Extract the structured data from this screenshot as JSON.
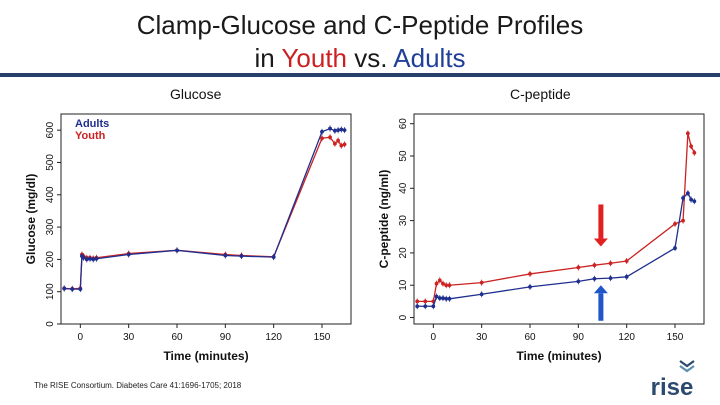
{
  "slide": {
    "title_line1": "Clamp-Glucose and C-Peptide Profiles",
    "title_line2_prefix": "in",
    "title_line2_youth": "Youth",
    "title_line2_mid": "vs.",
    "title_line2_adults": "Adults",
    "citation": "The RISE Consortium. Diabetes Care 41:1696-1705; 2018",
    "logo_text": "rise"
  },
  "colors": {
    "youth": "#cc2222",
    "adults": "#1f2f8f",
    "title_youth": "#cc1f1f",
    "title_adults": "#1f3f99",
    "up_arrow": "#1f56c9",
    "down_arrow": "#e12020"
  },
  "chart_data": [
    {
      "type": "line",
      "panel_label": "Glucose",
      "xlabel": "Time (minutes)",
      "ylabel": "Glucose (mg/dl)",
      "xlim": [
        -12,
        168
      ],
      "ylim": [
        0,
        650
      ],
      "xticks": [
        0,
        30,
        60,
        90,
        120,
        150
      ],
      "yticks": [
        0,
        100,
        200,
        300,
        400,
        500,
        600
      ],
      "legend": {
        "placement": "top-left",
        "entries": [
          "Adults",
          "Youth"
        ]
      },
      "series": [
        {
          "name": "Adults",
          "color": "#1f2f8f",
          "x": [
            -10,
            -5,
            0,
            1,
            2,
            4,
            6,
            8,
            10,
            30,
            60,
            90,
            100,
            120,
            150,
            155,
            158,
            160,
            162,
            164
          ],
          "y": [
            110,
            108,
            108,
            210,
            205,
            200,
            202,
            200,
            202,
            215,
            228,
            212,
            210,
            207,
            595,
            605,
            598,
            600,
            602,
            600
          ]
        },
        {
          "name": "Youth",
          "color": "#cc2222",
          "x": [
            -10,
            -5,
            0,
            1,
            2,
            4,
            6,
            8,
            10,
            30,
            60,
            90,
            100,
            120,
            150,
            155,
            158,
            160,
            162,
            164
          ],
          "y": [
            110,
            109,
            110,
            215,
            210,
            205,
            205,
            203,
            205,
            218,
            228,
            215,
            212,
            208,
            575,
            578,
            558,
            568,
            552,
            556
          ]
        }
      ]
    },
    {
      "type": "line",
      "panel_label": "C-peptide",
      "xlabel": "Time (minutes)",
      "ylabel": "C-peptide (ng/ml)",
      "xlim": [
        -12,
        168
      ],
      "ylim": [
        -2,
        63
      ],
      "xticks": [
        0,
        30,
        60,
        90,
        120,
        150
      ],
      "yticks": [
        0,
        10,
        20,
        30,
        40,
        50,
        60
      ],
      "annotations": [
        {
          "kind": "down-arrow",
          "x": 104,
          "from_y": 35,
          "to_y": 22,
          "color": "#e12020"
        },
        {
          "kind": "up-arrow",
          "x": 104,
          "from_y": -1,
          "to_y": 10,
          "color": "#1f56c9"
        }
      ],
      "series": [
        {
          "name": "Adults",
          "color": "#1f2f8f",
          "x": [
            -10,
            -5,
            0,
            2,
            4,
            6,
            8,
            10,
            30,
            60,
            90,
            100,
            110,
            120,
            150,
            155,
            158,
            160,
            162
          ],
          "y": [
            3.5,
            3.5,
            3.5,
            6.5,
            6.0,
            6.0,
            5.8,
            5.8,
            7.2,
            9.5,
            11.2,
            12.0,
            12.2,
            12.6,
            21.5,
            37,
            38.5,
            36.5,
            36
          ]
        },
        {
          "name": "Youth",
          "color": "#cc2222",
          "x": [
            -10,
            -5,
            0,
            2,
            4,
            6,
            8,
            10,
            30,
            60,
            90,
            100,
            110,
            120,
            150,
            155,
            158,
            160,
            162
          ],
          "y": [
            5.0,
            5.0,
            5.0,
            10.5,
            11.5,
            10.5,
            10.0,
            10.0,
            10.8,
            13.5,
            15.5,
            16.2,
            16.8,
            17.5,
            29,
            30,
            57,
            53,
            51
          ]
        }
      ]
    }
  ]
}
